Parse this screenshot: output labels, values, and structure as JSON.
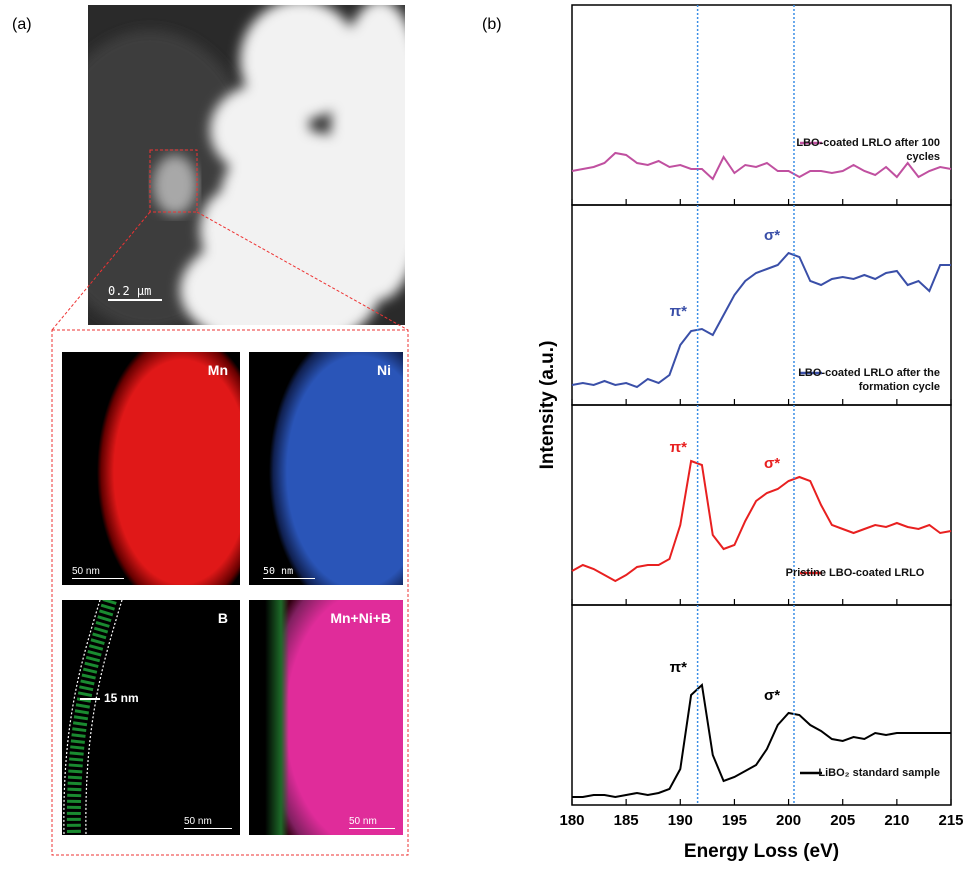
{
  "panel_a": {
    "label": "(a)",
    "scale_bar": "0.2 μm",
    "maps": [
      {
        "element": "Mn",
        "scale_bar": "50 nm"
      },
      {
        "element": "Ni",
        "scale_bar": "50 nm"
      },
      {
        "element": "B",
        "scale_bar": "50 nm"
      },
      {
        "element": "Mn+Ni+B",
        "scale_bar": "50 nm"
      }
    ],
    "coating_thickness": "15 nm"
  },
  "panel_b": {
    "label": "(b)"
  },
  "chart_data": {
    "type": "line",
    "layout": "stacked",
    "xlabel": "Energy Loss (eV)",
    "ylabel": "Intensity (a.u.)",
    "xlim": [
      180,
      215
    ],
    "xticks": [
      180,
      185,
      190,
      195,
      200,
      205,
      210,
      215
    ],
    "ylim": [
      0,
      1
    ],
    "vlines": [
      191.6,
      200.5
    ],
    "vline_color": "#3a8ee6",
    "x": [
      180,
      181,
      182,
      183,
      184,
      185,
      186,
      187,
      188,
      189,
      190,
      191,
      192,
      193,
      194,
      195,
      196,
      197,
      198,
      199,
      200,
      201,
      202,
      203,
      204,
      205,
      206,
      207,
      208,
      209,
      210,
      211,
      212,
      213,
      214,
      215
    ],
    "series": [
      {
        "name": "LBO-coated LRLO after 100 cycles",
        "color": "#c050a0",
        "peaks": [],
        "values": [
          0.17,
          0.18,
          0.19,
          0.21,
          0.26,
          0.25,
          0.21,
          0.2,
          0.22,
          0.19,
          0.2,
          0.18,
          0.18,
          0.13,
          0.24,
          0.16,
          0.2,
          0.19,
          0.21,
          0.17,
          0.17,
          0.14,
          0.17,
          0.17,
          0.16,
          0.17,
          0.2,
          0.17,
          0.15,
          0.19,
          0.14,
          0.21,
          0.14,
          0.17,
          0.19,
          0.18
        ]
      },
      {
        "name": "LBO-coated LRLO after the formation cycle",
        "color": "#3a4fa8",
        "peaks": [
          {
            "label": "π*",
            "x": 191.6
          },
          {
            "label": "σ*",
            "x": 200.5
          }
        ],
        "values": [
          0.1,
          0.11,
          0.1,
          0.12,
          0.1,
          0.11,
          0.09,
          0.13,
          0.11,
          0.15,
          0.3,
          0.37,
          0.38,
          0.35,
          0.45,
          0.55,
          0.62,
          0.66,
          0.68,
          0.7,
          0.76,
          0.74,
          0.62,
          0.6,
          0.63,
          0.64,
          0.63,
          0.65,
          0.63,
          0.66,
          0.67,
          0.6,
          0.62,
          0.57,
          0.7,
          0.7
        ]
      },
      {
        "name": "Pristine LBO-coated LRLO",
        "color": "#e82020",
        "peaks": [
          {
            "label": "π*",
            "x": 191.6
          },
          {
            "label": "σ*",
            "x": 200.5
          }
        ],
        "values": [
          0.17,
          0.2,
          0.18,
          0.15,
          0.12,
          0.15,
          0.19,
          0.2,
          0.2,
          0.23,
          0.4,
          0.72,
          0.7,
          0.35,
          0.28,
          0.3,
          0.42,
          0.52,
          0.56,
          0.58,
          0.62,
          0.64,
          0.62,
          0.5,
          0.4,
          0.38,
          0.36,
          0.38,
          0.4,
          0.39,
          0.41,
          0.39,
          0.38,
          0.4,
          0.36,
          0.37
        ]
      },
      {
        "name": "LiBO₂ standard sample",
        "color": "#000000",
        "peaks": [
          {
            "label": "π*",
            "x": 191.6
          },
          {
            "label": "σ*",
            "x": 200.5
          }
        ],
        "values": [
          0.04,
          0.04,
          0.05,
          0.05,
          0.04,
          0.05,
          0.06,
          0.05,
          0.06,
          0.08,
          0.18,
          0.55,
          0.6,
          0.25,
          0.12,
          0.14,
          0.17,
          0.2,
          0.28,
          0.4,
          0.46,
          0.45,
          0.4,
          0.37,
          0.33,
          0.32,
          0.34,
          0.33,
          0.36,
          0.35,
          0.36,
          0.36,
          0.36,
          0.36,
          0.36,
          0.36
        ]
      }
    ]
  }
}
